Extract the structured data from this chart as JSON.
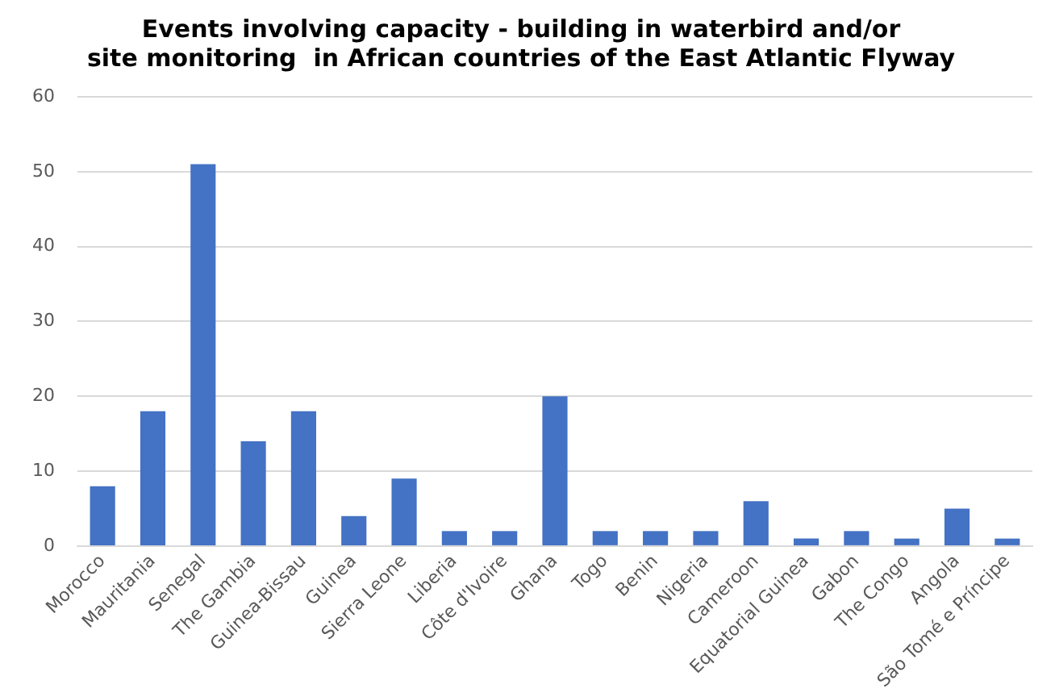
{
  "chart_data": {
    "type": "bar",
    "title": "Events involving capacity - building in waterbird and/or\nsite monitoring  in African countries of the East Atlantic Flyway",
    "categories": [
      "Morocco",
      "Mauritania",
      "Senegal",
      "The Gambia",
      "Guinea-Bissau",
      "Guinea",
      "Sierra Leone",
      "Liberia",
      "Côte d'Ivoire",
      "Ghana",
      "Togo",
      "Benin",
      "Nigeria",
      "Cameroon",
      "Equatorial Guinea",
      "Gabon",
      "The Congo",
      "Angola",
      "São Tomé e Príncipe"
    ],
    "values": [
      8,
      18,
      51,
      14,
      18,
      4,
      9,
      2,
      2,
      20,
      2,
      2,
      2,
      6,
      1,
      2,
      1,
      5,
      1
    ],
    "color": "#4472c4",
    "ylim": [
      0,
      60
    ],
    "yticks": [
      0,
      10,
      20,
      30,
      40,
      50,
      60
    ],
    "grid": "y"
  }
}
